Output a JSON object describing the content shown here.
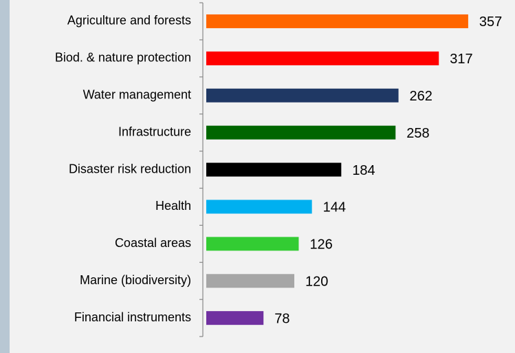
{
  "chart_data": {
    "type": "bar",
    "orientation": "horizontal",
    "categories": [
      "Agriculture and forests",
      "Biod. & nature protection",
      "Water management",
      "Infrastructure",
      "Disaster risk reduction",
      "Health",
      "Coastal areas",
      "Marine (biodiversity)",
      "Financial instruments"
    ],
    "values": [
      357,
      317,
      262,
      258,
      184,
      144,
      126,
      120,
      78
    ],
    "colors": [
      "#ff6600",
      "#ff0000",
      "#1f3864",
      "#006600",
      "#000000",
      "#00b0f0",
      "#33cc33",
      "#a6a6a6",
      "#7030a0"
    ]
  }
}
